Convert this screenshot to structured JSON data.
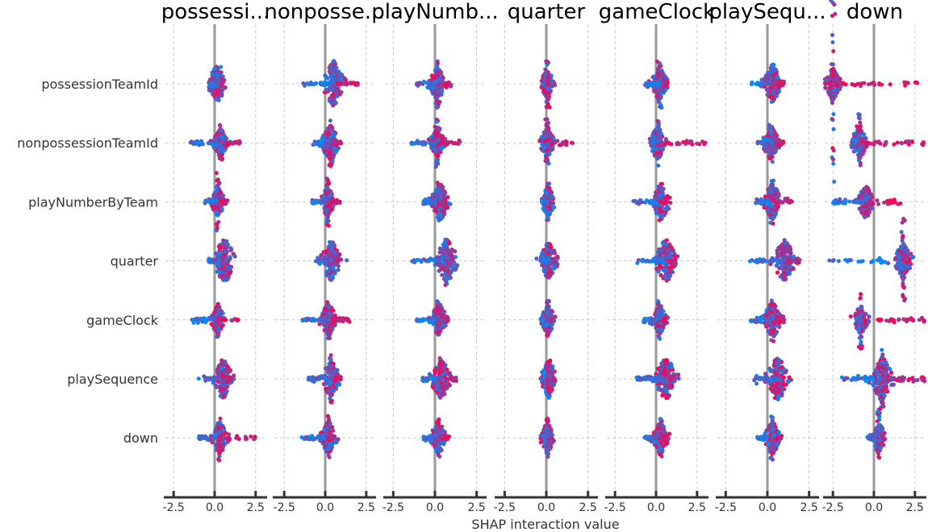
{
  "chart_data": {
    "type": "scatter",
    "subtype": "shap-interaction-summary",
    "xlabel": "SHAP interaction value",
    "xticks": [
      -2.5,
      0.0,
      2.5
    ],
    "xtick_labels": [
      "-2.5",
      "0.0",
      "2.5"
    ],
    "xlim": [
      -3.0,
      3.0
    ],
    "grid": true,
    "colors": {
      "low": "#008bfb",
      "high": "#ff0052",
      "zero_line": "#999999",
      "grid": "#cccccc"
    },
    "columns": [
      {
        "title": "possessi...",
        "xlim": [
          -3.0,
          3.1
        ]
      },
      {
        "title": "nonposse...",
        "xlim": [
          -3.1,
          3.0
        ]
      },
      {
        "title": "playNumb...",
        "xlim": [
          -3.0,
          3.0
        ]
      },
      {
        "title": "quarter",
        "xlim": [
          -3.0,
          3.0
        ]
      },
      {
        "title": "gameClock",
        "xlim": [
          -3.0,
          3.1
        ]
      },
      {
        "title": "playSequ...",
        "xlim": [
          -3.0,
          3.0
        ]
      },
      {
        "title": "down",
        "xlim": [
          -3.0,
          3.1
        ]
      }
    ],
    "rows": [
      "possessionTeamId",
      "nonpossessionTeamId",
      "playNumberByTeam",
      "quarter",
      "gameClock",
      "playSequence",
      "down"
    ],
    "spread": [
      [
        [
          0.15,
          0.4,
          -0.3,
          0.3,
          0.4,
          -0.8,
          1.0
        ],
        [
          0.35,
          0.3,
          -1.5,
          1.7,
          0.4,
          -0.5,
          0.7
        ],
        [
          0.2,
          0.3,
          -0.6,
          0.8,
          0.6,
          -1.2,
          2.3
        ],
        [
          0.6,
          0.5,
          -0.4,
          0.5,
          0.4,
          -1.0,
          3.0
        ],
        [
          0.2,
          0.3,
          -1.4,
          1.5,
          0.35,
          -0.6,
          0.6
        ],
        [
          0.5,
          0.45,
          -1.0,
          1.0,
          0.4,
          -1.0,
          1.1
        ],
        [
          0.3,
          0.35,
          -1.0,
          2.5,
          0.5,
          -0.4,
          2.4
        ]
      ],
      [
        [
          0.5,
          0.5,
          -1.4,
          2.0,
          0.5,
          -0.4,
          0.4
        ],
        [
          0.3,
          0.4,
          -0.8,
          1.0,
          0.5,
          -0.3,
          0.4
        ],
        [
          0.15,
          0.3,
          -0.8,
          1.0,
          0.5,
          -0.3,
          0.4
        ],
        [
          0.35,
          0.45,
          -0.6,
          0.8,
          0.4,
          -0.3,
          0.4
        ],
        [
          0.2,
          0.35,
          -1.4,
          1.7,
          0.4,
          -0.3,
          0.5
        ],
        [
          0.35,
          0.4,
          -1.1,
          0.7,
          0.5,
          -0.4,
          0.5
        ],
        [
          0.2,
          0.35,
          -1.5,
          0.5,
          0.5,
          -0.3,
          0.5
        ]
      ],
      [
        [
          0.15,
          0.35,
          -1.1,
          1.0,
          0.5,
          -0.4,
          0.4
        ],
        [
          0.15,
          0.3,
          -1.5,
          1.5,
          0.5,
          -0.4,
          0.4
        ],
        [
          0.3,
          0.4,
          -0.7,
          0.6,
          0.4,
          -0.3,
          0.4
        ],
        [
          0.7,
          0.5,
          -1.4,
          0.6,
          0.5,
          -0.3,
          0.4
        ],
        [
          0.25,
          0.35,
          -1.1,
          0.8,
          0.4,
          -0.3,
          0.4
        ],
        [
          0.35,
          0.45,
          -0.8,
          1.3,
          0.45,
          -0.4,
          0.5
        ],
        [
          0.2,
          0.35,
          -0.7,
          0.9,
          0.4,
          -0.3,
          0.4
        ]
      ],
      [
        [
          0.05,
          0.3,
          -0.15,
          0.15,
          0.5,
          -0.1,
          0.1
        ],
        [
          0.05,
          0.3,
          -0.15,
          1.9,
          0.5,
          -0.1,
          0.1
        ],
        [
          0.1,
          0.3,
          -0.3,
          0.2,
          0.4,
          -0.1,
          0.1
        ],
        [
          0.15,
          0.4,
          -0.3,
          0.3,
          0.35,
          -0.2,
          0.3
        ],
        [
          0.1,
          0.3,
          -0.3,
          0.2,
          0.4,
          -0.1,
          0.1
        ],
        [
          0.15,
          0.4,
          -0.3,
          0.5,
          0.4,
          -0.2,
          0.2
        ],
        [
          0.05,
          0.3,
          -0.15,
          0.15,
          0.4,
          -0.1,
          0.1
        ]
      ],
      [
        [
          0.2,
          0.35,
          -0.7,
          0.7,
          0.5,
          -0.4,
          0.4
        ],
        [
          0.1,
          0.35,
          -0.4,
          3.1,
          0.5,
          -0.3,
          0.3
        ],
        [
          0.3,
          0.4,
          -1.4,
          0.7,
          0.4,
          -0.4,
          0.4
        ],
        [
          0.6,
          0.5,
          -1.2,
          1.3,
          0.35,
          -0.4,
          0.4
        ],
        [
          0.2,
          0.3,
          -0.8,
          0.6,
          0.4,
          -0.4,
          0.4
        ],
        [
          0.6,
          0.5,
          -1.4,
          1.0,
          0.4,
          -0.4,
          0.4
        ],
        [
          0.3,
          0.35,
          -0.7,
          0.7,
          0.4,
          -0.3,
          0.3
        ]
      ],
      [
        [
          0.3,
          0.4,
          -1.0,
          1.0,
          0.4,
          -0.4,
          0.4
        ],
        [
          0.2,
          0.35,
          -0.6,
          1.0,
          0.45,
          -0.4,
          0.3
        ],
        [
          0.3,
          0.4,
          -0.7,
          1.5,
          0.45,
          -0.4,
          0.4
        ],
        [
          1.0,
          0.5,
          -1.1,
          2.0,
          0.4,
          -0.5,
          0.5
        ],
        [
          0.3,
          0.4,
          -1.0,
          1.0,
          0.45,
          -0.4,
          0.4
        ],
        [
          0.6,
          0.5,
          -0.8,
          0.5,
          0.4,
          -0.5,
          0.3
        ],
        [
          0.3,
          0.35,
          -0.6,
          0.8,
          0.45,
          -0.3,
          0.3
        ]
      ],
      [
        [
          -2.5,
          0.35,
          -2.7,
          2.8,
          -2.2,
          0.35,
          3.1
        ],
        [
          -0.9,
          0.35,
          -1.4,
          3.1,
          -0.6,
          -0.2,
          2.0
        ],
        [
          -0.5,
          0.35,
          -2.5,
          1.8,
          0.3,
          -0.3,
          2.0
        ],
        [
          1.8,
          0.4,
          -3.0,
          2.2,
          0.9,
          -0.7,
          2.2
        ],
        [
          -0.8,
          0.3,
          -1.0,
          3.1,
          -0.6,
          -0.2,
          2.4
        ],
        [
          0.5,
          0.5,
          -2.0,
          3.1,
          0.6,
          -0.8,
          2.0
        ],
        [
          0.3,
          0.3,
          -0.4,
          0.6,
          0.6,
          -0.3,
          0.3
        ]
      ]
    ]
  }
}
